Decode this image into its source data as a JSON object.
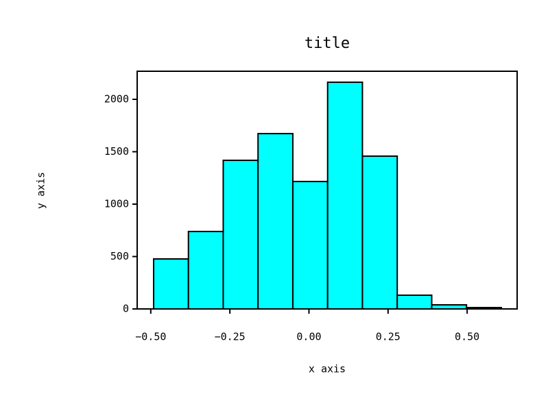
{
  "chart_data": {
    "type": "histogram",
    "title": "title",
    "x_label": "x axis",
    "y_label": "y axis",
    "bins": [
      -0.491,
      -0.381,
      -0.271,
      -0.161,
      -0.051,
      0.059,
      0.169,
      0.279,
      0.388,
      0.498,
      0.608
    ],
    "values": [
      477,
      739,
      1418,
      1673,
      1216,
      2163,
      1458,
      131,
      39,
      13
    ],
    "color": "#00ffff",
    "edgecolor": "#000000",
    "xlim": [
      -0.543,
      0.658
    ],
    "xticks": [
      {
        "value": -0.5,
        "label": "−0.50"
      },
      {
        "value": -0.25,
        "label": "−0.25"
      },
      {
        "value": 0,
        "label": "0.00"
      },
      {
        "value": 0.25,
        "label": "0.25"
      },
      {
        "value": 0.5,
        "label": "0.50"
      }
    ],
    "ylim": [
      0,
      2268
    ],
    "yticks": [
      0,
      500,
      1000,
      1500,
      2000
    ]
  }
}
